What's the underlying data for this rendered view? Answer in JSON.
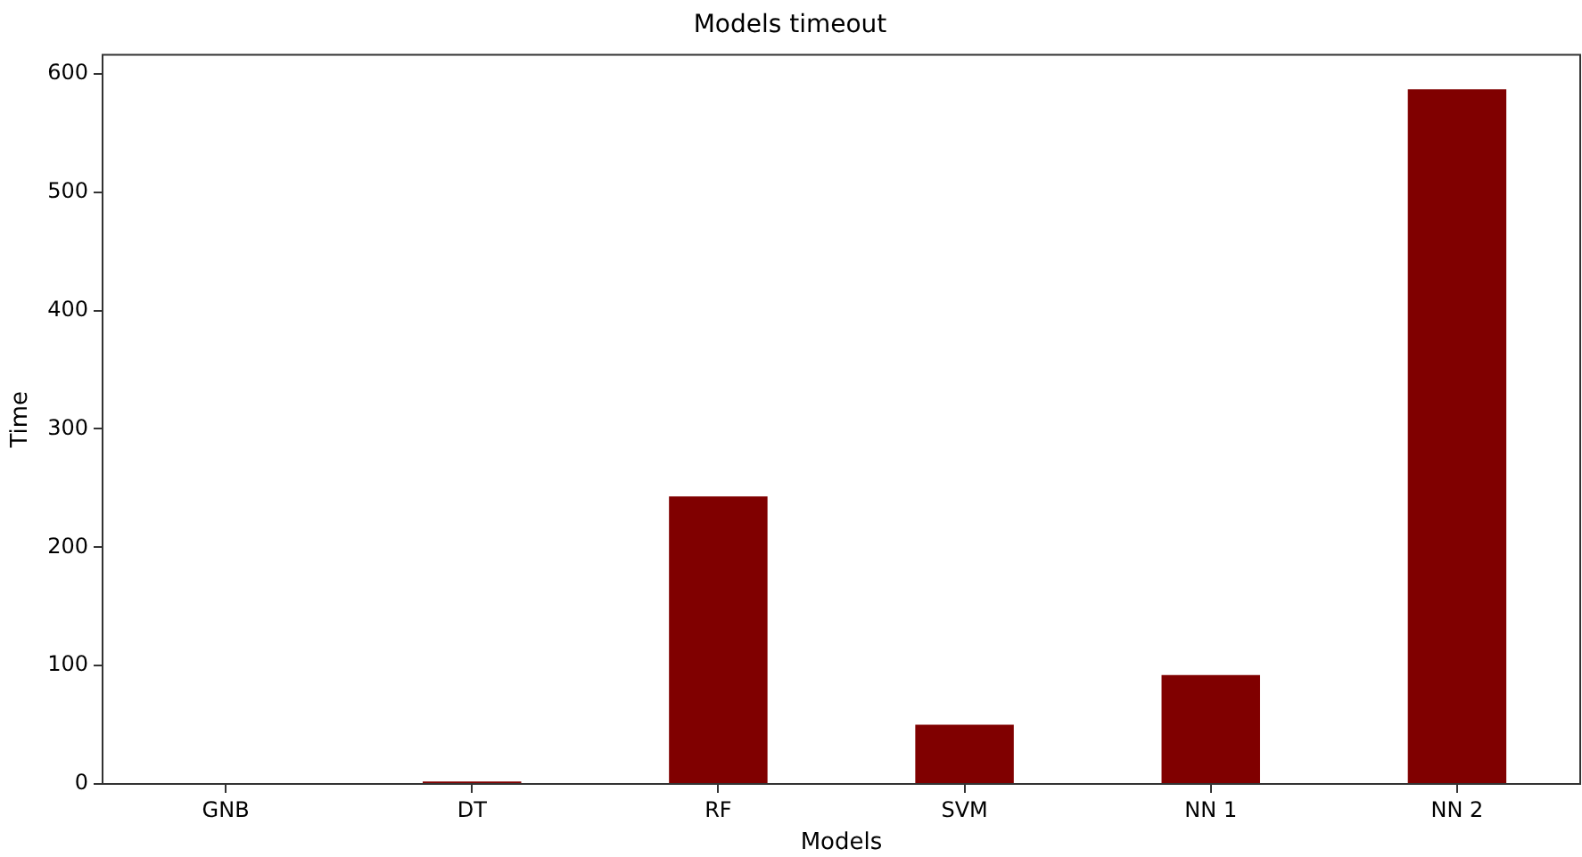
{
  "chart_data": {
    "type": "bar",
    "title": "Models timeout",
    "xlabel": "Models",
    "ylabel": "Time",
    "categories": [
      "GNB",
      "DT",
      "RF",
      "SVM",
      "NN 1",
      "NN 2"
    ],
    "values": [
      0,
      2,
      243,
      50,
      92,
      587
    ],
    "color": "#800000",
    "ylim": [
      0,
      616
    ],
    "yticks": [
      0,
      100,
      200,
      300,
      400,
      500,
      600
    ],
    "grid": false,
    "legend": false
  }
}
